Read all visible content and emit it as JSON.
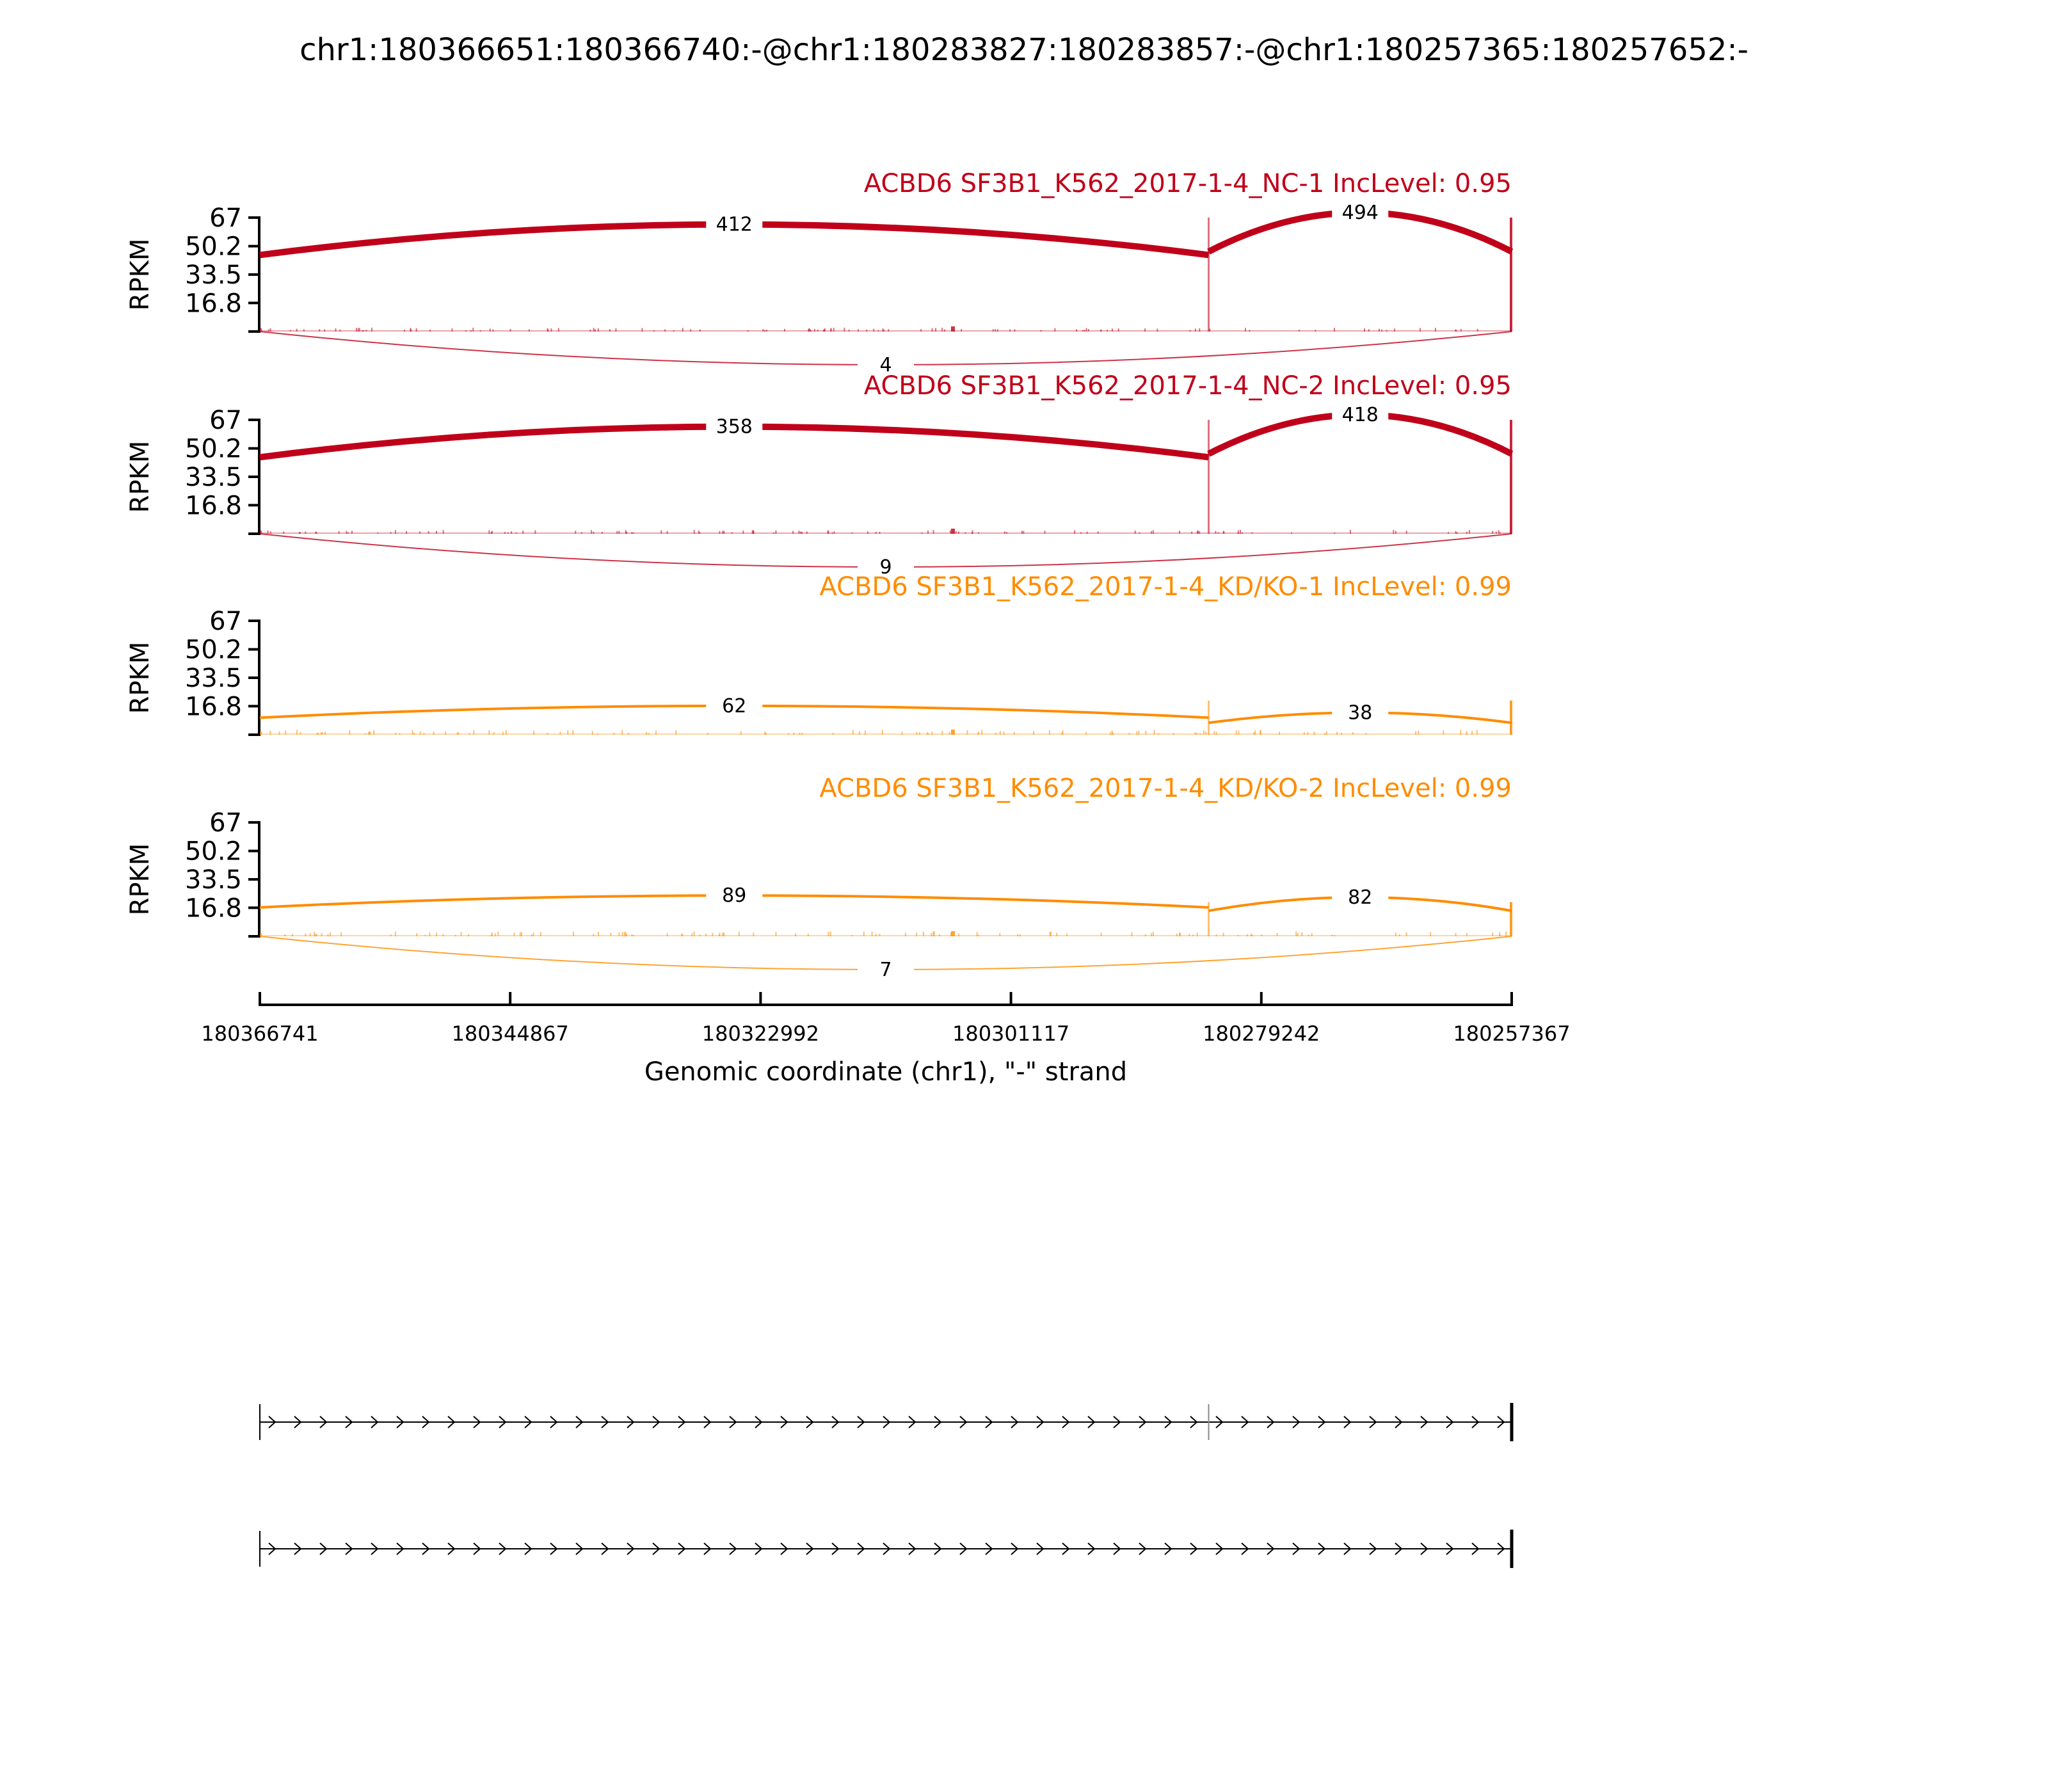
{
  "title": "chr1:180366651:180366740:-@chr1:180283827:180283857:-@chr1:180257365:180257652:-",
  "chart_data": {
    "type": "sashimi",
    "title": "chr1:180366651:180366740:-@chr1:180283827:180283857:-@chr1:180257365:180257652:-",
    "ylabel": "RPKM",
    "yticks": [
      "67",
      "50.2",
      "33.5",
      "16.8"
    ],
    "ylim": [
      0,
      67
    ],
    "xlabel": "Genomic coordinate (chr1), \"-\" strand",
    "xticks": [
      "180366741",
      "180344867",
      "180322992",
      "180301117",
      "180279242",
      "180257367"
    ],
    "xlim": [
      180366741,
      180257367
    ],
    "exon_breaks": [
      180366741,
      180283842,
      180257367
    ],
    "colors": {
      "NC": "#c0001a",
      "KD": "#ff8c00"
    },
    "panels": [
      {
        "title": "ACBD6 SF3B1_K562_2017-1-4_NC-1 IncLevel: 0.95",
        "group": "NC",
        "coverage_level": 1.0,
        "junctions": [
          {
            "from": 180366741,
            "to": 180283842,
            "reads": "412",
            "side": "top",
            "start_y": 45,
            "peak_y": 63
          },
          {
            "from": 180283842,
            "to": 180257367,
            "reads": "494",
            "side": "top",
            "start_y": 47,
            "peak_y": 70
          },
          {
            "from": 180366741,
            "to": 180257367,
            "reads": "4",
            "side": "bottom",
            "width": 1
          }
        ]
      },
      {
        "title": "ACBD6 SF3B1_K562_2017-1-4_NC-2 IncLevel: 0.95",
        "group": "NC",
        "coverage_level": 1.0,
        "junctions": [
          {
            "from": 180366741,
            "to": 180283842,
            "reads": "358",
            "side": "top",
            "start_y": 45,
            "peak_y": 63
          },
          {
            "from": 180283842,
            "to": 180257367,
            "reads": "418",
            "side": "top",
            "start_y": 47,
            "peak_y": 70
          },
          {
            "from": 180366741,
            "to": 180257367,
            "reads": "9",
            "side": "bottom",
            "width": 1
          }
        ]
      },
      {
        "title": "ACBD6 SF3B1_K562_2017-1-4_KD/KO-1 IncLevel: 0.99",
        "group": "KD",
        "coverage_level": 0.3,
        "junctions": [
          {
            "from": 180366741,
            "to": 180283842,
            "reads": "62",
            "side": "top",
            "start_y": 10,
            "peak_y": 17
          },
          {
            "from": 180283842,
            "to": 180257367,
            "reads": "38",
            "side": "top",
            "start_y": 7,
            "peak_y": 13
          }
        ]
      },
      {
        "title": "ACBD6 SF3B1_K562_2017-1-4_KD/KO-2 IncLevel: 0.99",
        "group": "KD",
        "coverage_level": 0.3,
        "junctions": [
          {
            "from": 180366741,
            "to": 180283842,
            "reads": "89",
            "side": "top",
            "start_y": 17,
            "peak_y": 24
          },
          {
            "from": 180283842,
            "to": 180257367,
            "reads": "82",
            "side": "top",
            "start_y": 15,
            "peak_y": 23
          },
          {
            "from": 180366741,
            "to": 180257367,
            "reads": "7",
            "side": "bottom",
            "width": 1
          }
        ]
      }
    ],
    "isoforms": [
      {
        "exons": [
          180366741,
          180283842,
          180257367
        ]
      },
      {
        "exons": [
          180366741,
          180257367
        ]
      }
    ]
  }
}
